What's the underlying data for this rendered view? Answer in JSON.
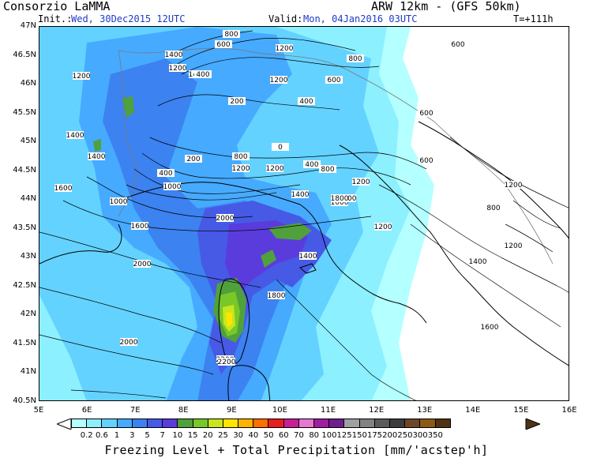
{
  "header": {
    "institution": "Consorzio LaMMA",
    "model": "ARW 12km - (GFS 50km)",
    "init_label": "Init.:",
    "init_value": "Wed, 30Dec2015 12UTC",
    "valid_label": "Valid:",
    "valid_value": "Mon, 04Jan2016 03UTC",
    "lead_time": "T=+111h"
  },
  "axes": {
    "lat_labels": [
      "47N",
      "46.5N",
      "46N",
      "45.5N",
      "45N",
      "44.5N",
      "44N",
      "43.5N",
      "43N",
      "42.5N",
      "42N",
      "41.5N",
      "41N",
      "40.5N"
    ],
    "lon_labels": [
      "5E",
      "6E",
      "7E",
      "8E",
      "9E",
      "10E",
      "11E",
      "12E",
      "13E",
      "14E",
      "15E",
      "16E"
    ]
  },
  "legend": {
    "title": "Freezing Level + Total Precipitation [mm/'acstep'h]",
    "levels": [
      "0.2",
      "0.6",
      "1",
      "3",
      "5",
      "7",
      "10",
      "15",
      "20",
      "25",
      "30",
      "40",
      "50",
      "60",
      "70",
      "80",
      "100",
      "125",
      "150",
      "175",
      "200",
      "250",
      "300",
      "350"
    ],
    "colors": [
      "#b4ffff",
      "#8cf0ff",
      "#64d2ff",
      "#46aaff",
      "#3c82f0",
      "#465ae6",
      "#5a3cdc",
      "#50a03c",
      "#78c828",
      "#c8e61e",
      "#ffe600",
      "#ffb400",
      "#ff6e00",
      "#e61e1e",
      "#c81e96",
      "#e678d2",
      "#a01ea0",
      "#6e1e8c",
      "#a0a0a0",
      "#828282",
      "#5a5a5a",
      "#3c3c3c",
      "#6e4628",
      "#8c5a14",
      "#503214"
    ]
  },
  "contour_labels": [
    "800",
    "600",
    "1400",
    "1200",
    "1200",
    "600",
    "1400",
    "1200",
    "400",
    "600",
    "800",
    "1200",
    "200",
    "400",
    "1400",
    "0",
    "600",
    "1400",
    "200",
    "800",
    "400",
    "1200",
    "1200",
    "800",
    "600",
    "400",
    "1000",
    "1600",
    "1200",
    "1400",
    "1200",
    "1000",
    "1800",
    "1200",
    "1000",
    "2000",
    "1200",
    "1600",
    "800",
    "1400",
    "2000",
    "1200",
    "1400",
    "1800",
    "1600",
    "2000",
    "2200",
    "2200"
  ]
}
